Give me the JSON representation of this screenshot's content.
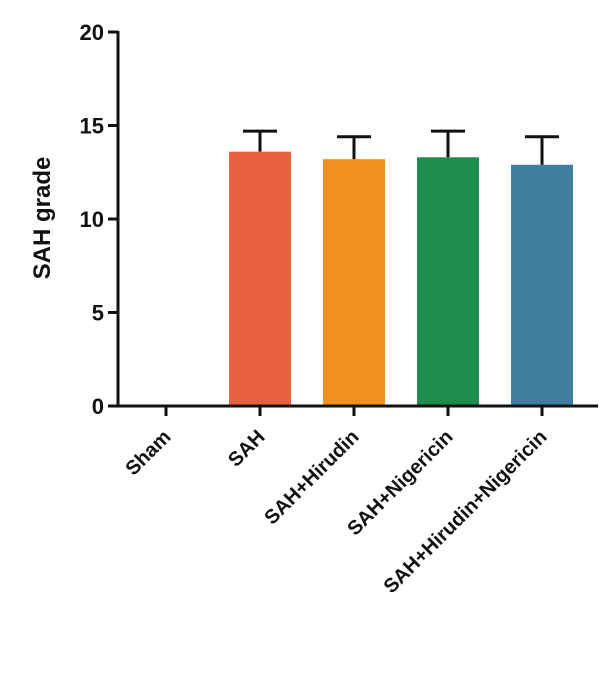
{
  "chart_data": {
    "type": "bar",
    "title": "",
    "xlabel": "",
    "ylabel": "SAH grade",
    "ylim": [
      0,
      20
    ],
    "yticks": [
      0,
      5,
      10,
      15,
      20
    ],
    "grid": false,
    "legend": "none",
    "categories": [
      "Sham",
      "SAH",
      "SAH+Hirudin",
      "SAH+Nigericin",
      "SAH+Hirudin+Nigericin"
    ],
    "values": [
      0,
      13.6,
      13.2,
      13.3,
      12.9
    ],
    "errors": [
      0,
      1.1,
      1.2,
      1.4,
      1.5
    ],
    "colors": [
      "#ffffff",
      "#e8613f",
      "#f0901e",
      "#1e8c4e",
      "#3e7fa0"
    ]
  }
}
